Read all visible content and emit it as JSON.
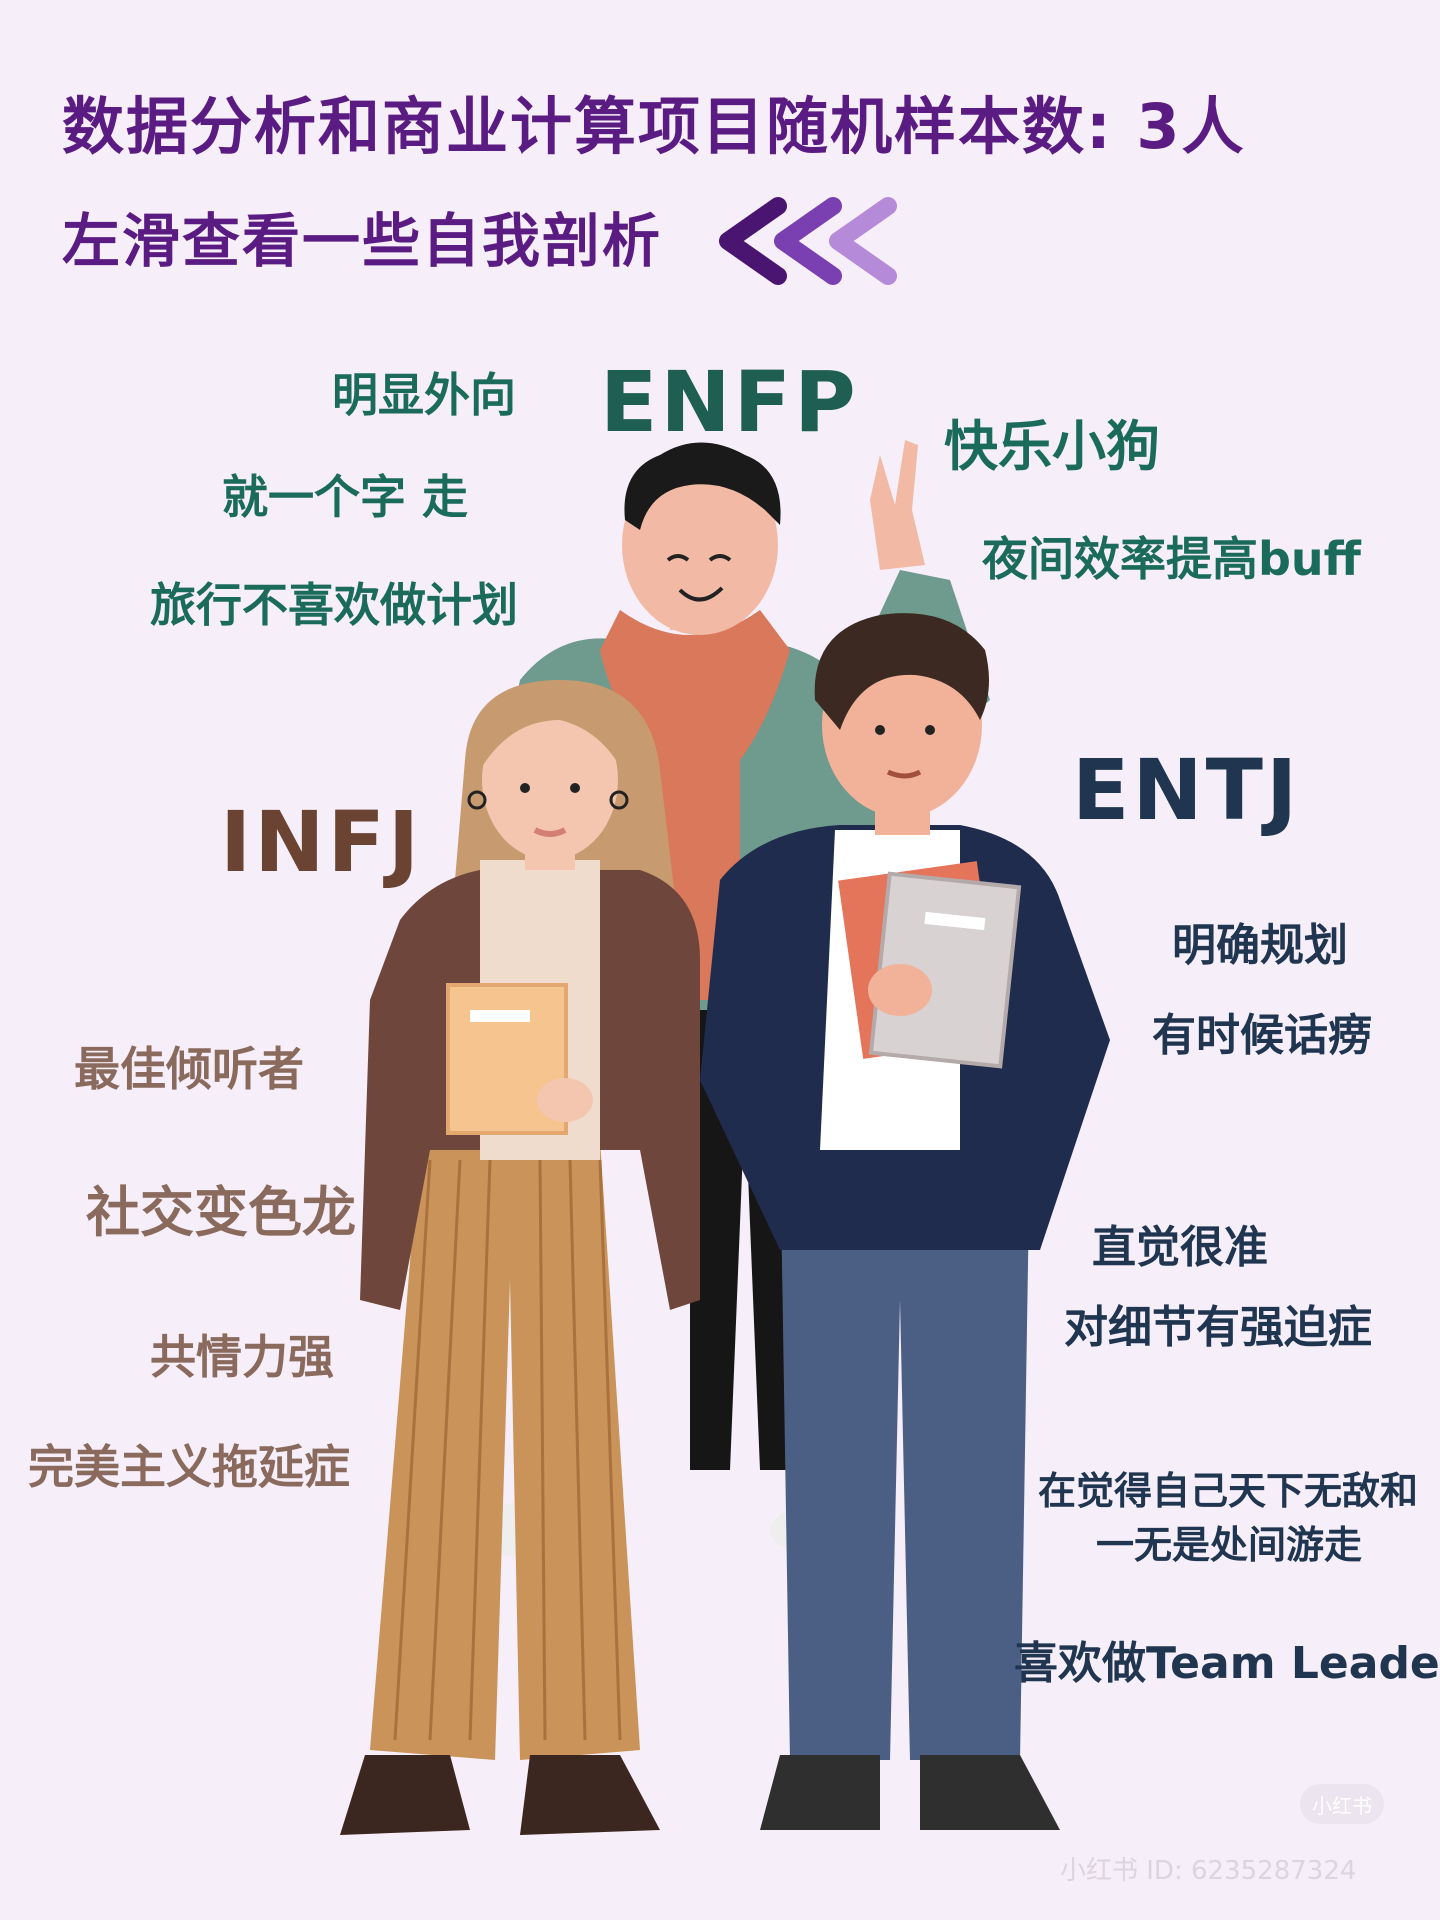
{
  "header": {
    "title": "数据分析和商业计算项目随机样本数: 3人",
    "subtitle": "左滑查看一些自我剖析",
    "chevron_icon": "triple-left-chevron-icon",
    "chevron_colors": [
      "#4a1570",
      "#7a3fb0",
      "#b58ad8"
    ]
  },
  "enfp": {
    "type": "ENFP",
    "traits": [
      "明显外向",
      "就一个字 走",
      "旅行不喜欢做计划",
      "快乐小狗",
      "夜间效率提高buff"
    ]
  },
  "entj": {
    "type": "ENTJ",
    "traits": [
      "明确规划",
      "有时候话痨",
      "直觉很准",
      "对细节有强迫症",
      "在觉得自己天下无敌和",
      "一无是处间游走",
      "喜欢做Team Leader"
    ]
  },
  "infj": {
    "type": "INFJ",
    "traits": [
      "最佳倾听者",
      "社交变色龙",
      "共情力强",
      "完美主义拖延症"
    ]
  },
  "watermark": {
    "badge": "小红书",
    "id_text": "小红书 ID: 6235287324"
  },
  "colors": {
    "background": "#f6eef8",
    "title": "#5a1b82",
    "enfp": "#1b6b5c",
    "entj": "#1f3550",
    "infj": "#8a6a5d"
  }
}
